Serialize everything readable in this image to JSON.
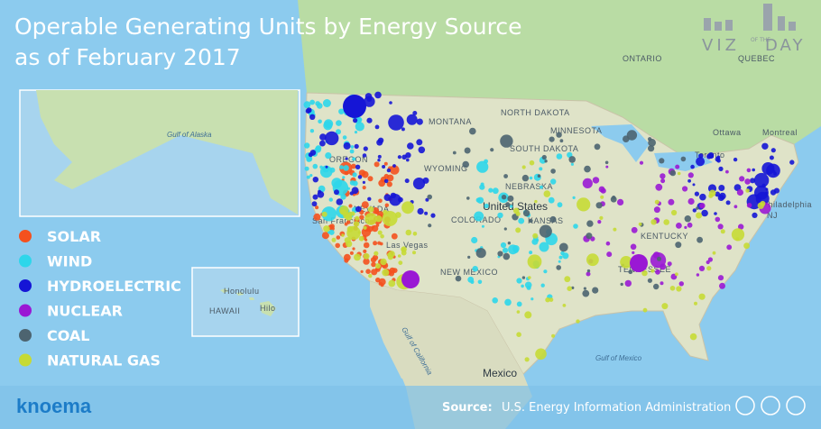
{
  "header": {
    "title_line1": "Operable Generating Units by Energy Source",
    "title_line2": "as of February 2017"
  },
  "legend": [
    {
      "label": "SOLAR",
      "color": "#f4511e"
    },
    {
      "label": "WIND",
      "color": "#2ed6ea"
    },
    {
      "label": "HYDROELECTRIC",
      "color": "#1515d6"
    },
    {
      "label": "NUCLEAR",
      "color": "#9a18d4"
    },
    {
      "label": "COAL",
      "color": "#4d6470"
    },
    {
      "label": "NATURAL GAS",
      "color": "#c6da35"
    }
  ],
  "map_labels": [
    "ONTARIO",
    "QUEBEC",
    "Ottawa",
    "Montreal",
    "Toronto",
    "MONTANA",
    "NORTH DAKOTA",
    "MINNESOTA",
    "SOUTH DAKOTA",
    "WYOMING",
    "OREGON",
    "NEVADA",
    "NEBRASKA",
    "United States",
    "COLORADO",
    "KANSAS",
    "San Francisco",
    "Las Vegas",
    "NEW MEXICO",
    "KENTUCKY",
    "TENNESSEE",
    "Philadelphia",
    "NJ",
    "Mexico"
  ],
  "water_labels": [
    "Gulf of Alaska",
    "Gulf of California",
    "Gulf of Mexico"
  ],
  "hawaii_labels": [
    "Honolulu",
    "HAWAII",
    "Hilo"
  ],
  "brand": {
    "logo_top": "VIZ",
    "logo_mid": "OF THE",
    "logo_end": "DAY",
    "company": "knoema"
  },
  "source": {
    "label": "Source:",
    "text": "U.S. Energy Information Administration"
  }
}
